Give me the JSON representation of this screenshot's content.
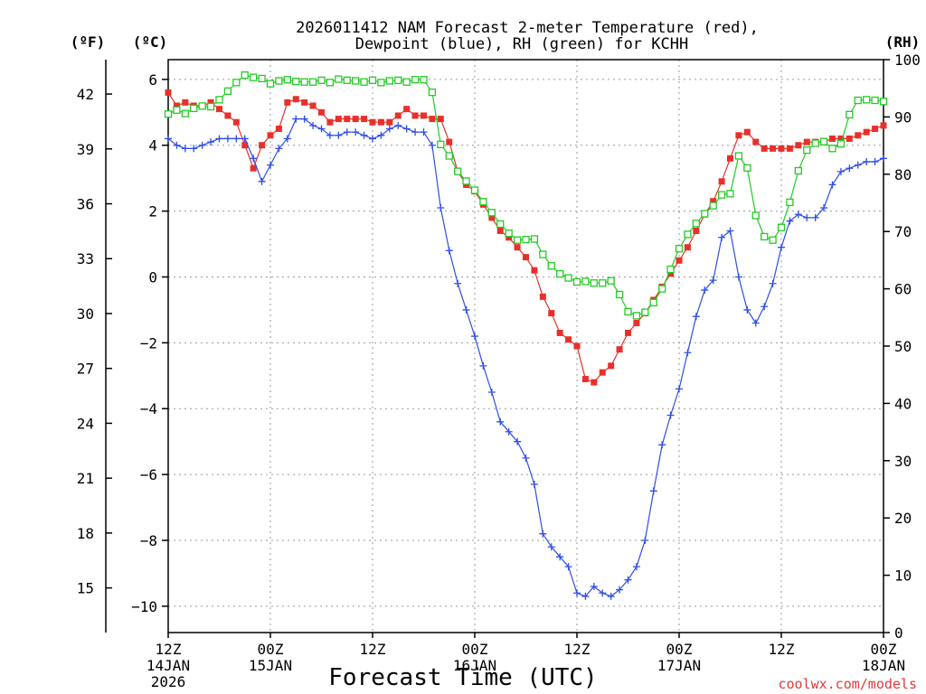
{
  "chart_data": {
    "type": "line",
    "title": "2026011412 NAM Forecast 2-meter Temperature (red),",
    "subtitle": "Dewpoint (blue), RH (green) for KCHH",
    "xlabel": "Forecast Time (UTC)",
    "watermark": "coolwx.com/models",
    "axis_units": {
      "fahrenheit": "(ºF)",
      "celsius": "(ºC)",
      "rh": "(RH)"
    },
    "xlim": [
      0,
      84
    ],
    "ylim_c": [
      -10.8,
      6.6
    ],
    "ylim_rh": [
      0,
      100
    ],
    "x_ticks": [
      {
        "x": 0,
        "line1": "12Z",
        "line2": "14JAN",
        "line3": "2026"
      },
      {
        "x": 12,
        "line1": "00Z",
        "line2": "15JAN",
        "line3": ""
      },
      {
        "x": 24,
        "line1": "12Z",
        "line2": "",
        "line3": ""
      },
      {
        "x": 36,
        "line1": "00Z",
        "line2": "16JAN",
        "line3": ""
      },
      {
        "x": 48,
        "line1": "12Z",
        "line2": "",
        "line3": ""
      },
      {
        "x": 60,
        "line1": "00Z",
        "line2": "17JAN",
        "line3": ""
      },
      {
        "x": 72,
        "line1": "12Z",
        "line2": "",
        "line3": ""
      },
      {
        "x": 84,
        "line1": "00Z",
        "line2": "18JAN",
        "line3": ""
      }
    ],
    "celsius_ticks": [
      {
        "value": 6,
        "label": "6"
      },
      {
        "value": 4,
        "label": "4"
      },
      {
        "value": 2,
        "label": "2"
      },
      {
        "value": 0,
        "label": "0"
      },
      {
        "value": -2,
        "label": "−2"
      },
      {
        "value": -4,
        "label": "−4"
      },
      {
        "value": -6,
        "label": "−6"
      },
      {
        "value": -8,
        "label": "−8"
      },
      {
        "value": -10,
        "label": "−10"
      }
    ],
    "fahrenheit_ticks": [
      {
        "value": 42,
        "label": "42"
      },
      {
        "value": 39,
        "label": "39"
      },
      {
        "value": 36,
        "label": "36"
      },
      {
        "value": 33,
        "label": "33"
      },
      {
        "value": 30,
        "label": "30"
      },
      {
        "value": 27,
        "label": "27"
      },
      {
        "value": 24,
        "label": "24"
      },
      {
        "value": 21,
        "label": "21"
      },
      {
        "value": 18,
        "label": "18"
      },
      {
        "value": 15,
        "label": "15"
      }
    ],
    "rh_ticks": [
      {
        "value": 100,
        "label": "100"
      },
      {
        "value": 90,
        "label": "90"
      },
      {
        "value": 80,
        "label": "80"
      },
      {
        "value": 70,
        "label": "70"
      },
      {
        "value": 60,
        "label": "60"
      },
      {
        "value": 50,
        "label": "50"
      },
      {
        "value": 40,
        "label": "40"
      },
      {
        "value": 30,
        "label": "30"
      },
      {
        "value": 20,
        "label": "20"
      },
      {
        "value": 10,
        "label": "10"
      },
      {
        "value": 0,
        "label": "0"
      }
    ],
    "series": [
      {
        "name": "2-meter Temperature (°C)",
        "color": "#e8302a",
        "marker": "filled-square",
        "axis": "celsius",
        "x": [
          0,
          1,
          2,
          3,
          4,
          5,
          6,
          7,
          8,
          9,
          10,
          11,
          12,
          13,
          14,
          15,
          16,
          17,
          18,
          19,
          20,
          21,
          22,
          23,
          24,
          25,
          26,
          27,
          28,
          29,
          30,
          31,
          32,
          33,
          34,
          35,
          36,
          37,
          38,
          39,
          40,
          41,
          42,
          43,
          44,
          45,
          46,
          47,
          48,
          49,
          50,
          51,
          52,
          53,
          54,
          55,
          56,
          57,
          58,
          59,
          60,
          61,
          62,
          63,
          64,
          65,
          66,
          67,
          68,
          69,
          70,
          71,
          72,
          73,
          74,
          75,
          76,
          77,
          78,
          79,
          80,
          81,
          82,
          83,
          84
        ],
        "values": [
          5.6,
          5.2,
          5.3,
          5.2,
          5.2,
          5.3,
          5.1,
          4.9,
          4.7,
          4.0,
          3.3,
          4.0,
          4.3,
          4.5,
          5.3,
          5.4,
          5.3,
          5.2,
          5.0,
          4.7,
          4.8,
          4.8,
          4.8,
          4.8,
          4.7,
          4.7,
          4.7,
          4.9,
          5.1,
          4.9,
          4.9,
          4.8,
          4.8,
          4.1,
          3.2,
          2.8,
          2.6,
          2.2,
          1.8,
          1.4,
          1.2,
          0.9,
          0.6,
          0.2,
          -0.6,
          -1.1,
          -1.7,
          -1.9,
          -2.1,
          -3.1,
          -3.2,
          -2.9,
          -2.7,
          -2.2,
          -1.7,
          -1.4,
          -1.1,
          -0.7,
          -0.3,
          0.1,
          0.5,
          0.9,
          1.4,
          1.9,
          2.3,
          2.9,
          3.6,
          4.3,
          4.4,
          4.1,
          3.9,
          3.9,
          3.9,
          3.9,
          4.0,
          4.1,
          4.1,
          4.1,
          4.2,
          4.2,
          4.2,
          4.3,
          4.4,
          4.5,
          4.6
        ]
      },
      {
        "name": "Dewpoint (°C)",
        "color": "#2f4ee8",
        "marker": "plus",
        "axis": "celsius",
        "x": [
          0,
          1,
          2,
          3,
          4,
          5,
          6,
          7,
          8,
          9,
          10,
          11,
          12,
          13,
          14,
          15,
          16,
          17,
          18,
          19,
          20,
          21,
          22,
          23,
          24,
          25,
          26,
          27,
          28,
          29,
          30,
          31,
          32,
          33,
          34,
          35,
          36,
          37,
          38,
          39,
          40,
          41,
          42,
          43,
          44,
          45,
          46,
          47,
          48,
          49,
          50,
          51,
          52,
          53,
          54,
          55,
          56,
          57,
          58,
          59,
          60,
          61,
          62,
          63,
          64,
          65,
          66,
          67,
          68,
          69,
          70,
          71,
          72,
          73,
          74,
          75,
          76,
          77,
          78,
          79,
          80,
          81,
          82,
          83,
          84
        ],
        "values": [
          4.2,
          4.0,
          3.9,
          3.9,
          4.0,
          4.1,
          4.2,
          4.2,
          4.2,
          4.2,
          3.6,
          2.9,
          3.4,
          3.9,
          4.2,
          4.8,
          4.8,
          4.6,
          4.5,
          4.3,
          4.3,
          4.4,
          4.4,
          4.3,
          4.2,
          4.3,
          4.5,
          4.6,
          4.5,
          4.4,
          4.4,
          4.0,
          2.1,
          0.8,
          -0.2,
          -1.0,
          -1.8,
          -2.7,
          -3.5,
          -4.4,
          -4.7,
          -5.0,
          -5.5,
          -6.3,
          -7.8,
          -8.2,
          -8.5,
          -8.8,
          -9.6,
          -9.7,
          -9.4,
          -9.6,
          -9.7,
          -9.5,
          -9.2,
          -8.8,
          -8.0,
          -6.5,
          -5.1,
          -4.2,
          -3.4,
          -2.3,
          -1.2,
          -0.4,
          -0.1,
          1.2,
          1.4,
          0.0,
          -1.0,
          -1.4,
          -0.9,
          -0.2,
          0.9,
          1.7,
          1.9,
          1.8,
          1.8,
          2.1,
          2.8,
          3.2,
          3.3,
          3.4,
          3.5,
          3.5,
          3.6
        ]
      },
      {
        "name": "Relative Humidity (%)",
        "color": "#22cc22",
        "marker": "open-square",
        "axis": "rh",
        "x": [
          0,
          1,
          2,
          3,
          4,
          5,
          6,
          7,
          8,
          9,
          10,
          11,
          12,
          13,
          14,
          15,
          16,
          17,
          18,
          19,
          20,
          21,
          22,
          23,
          24,
          25,
          26,
          27,
          28,
          29,
          30,
          31,
          32,
          33,
          34,
          35,
          36,
          37,
          38,
          39,
          40,
          41,
          42,
          43,
          44,
          45,
          46,
          47,
          48,
          49,
          50,
          51,
          52,
          53,
          54,
          55,
          56,
          57,
          58,
          59,
          60,
          61,
          62,
          63,
          64,
          65,
          66,
          67,
          68,
          69,
          70,
          71,
          72,
          73,
          74,
          75,
          76,
          77,
          78,
          79,
          80,
          81,
          82,
          83,
          84
        ],
        "values": [
          90.5,
          91.2,
          90.6,
          91.5,
          91.9,
          91.8,
          93.0,
          94.5,
          96.0,
          97.3,
          96.9,
          96.7,
          95.8,
          96.3,
          96.5,
          96.2,
          96.1,
          96.1,
          96.4,
          96.0,
          96.6,
          96.4,
          96.3,
          96.1,
          96.4,
          96.0,
          96.3,
          96.4,
          96.1,
          96.5,
          96.5,
          94.3,
          85.2,
          83.2,
          80.5,
          78.8,
          77.2,
          75.2,
          73.3,
          71.3,
          69.7,
          68.5,
          68.6,
          68.7,
          66.0,
          64.0,
          62.6,
          61.9,
          61.2,
          61.3,
          61.0,
          61.0,
          61.4,
          59.0,
          56.0,
          55.3,
          55.9,
          57.6,
          60.0,
          63.4,
          67.0,
          69.5,
          71.4,
          73.1,
          74.5,
          76.4,
          76.6,
          83.2,
          81.1,
          72.8,
          69.1,
          68.5,
          70.7,
          75.1,
          80.6,
          84.2,
          85.4,
          85.7,
          84.5,
          85.3,
          90.4,
          92.9,
          93.0,
          92.9,
          92.7
        ]
      }
    ]
  }
}
